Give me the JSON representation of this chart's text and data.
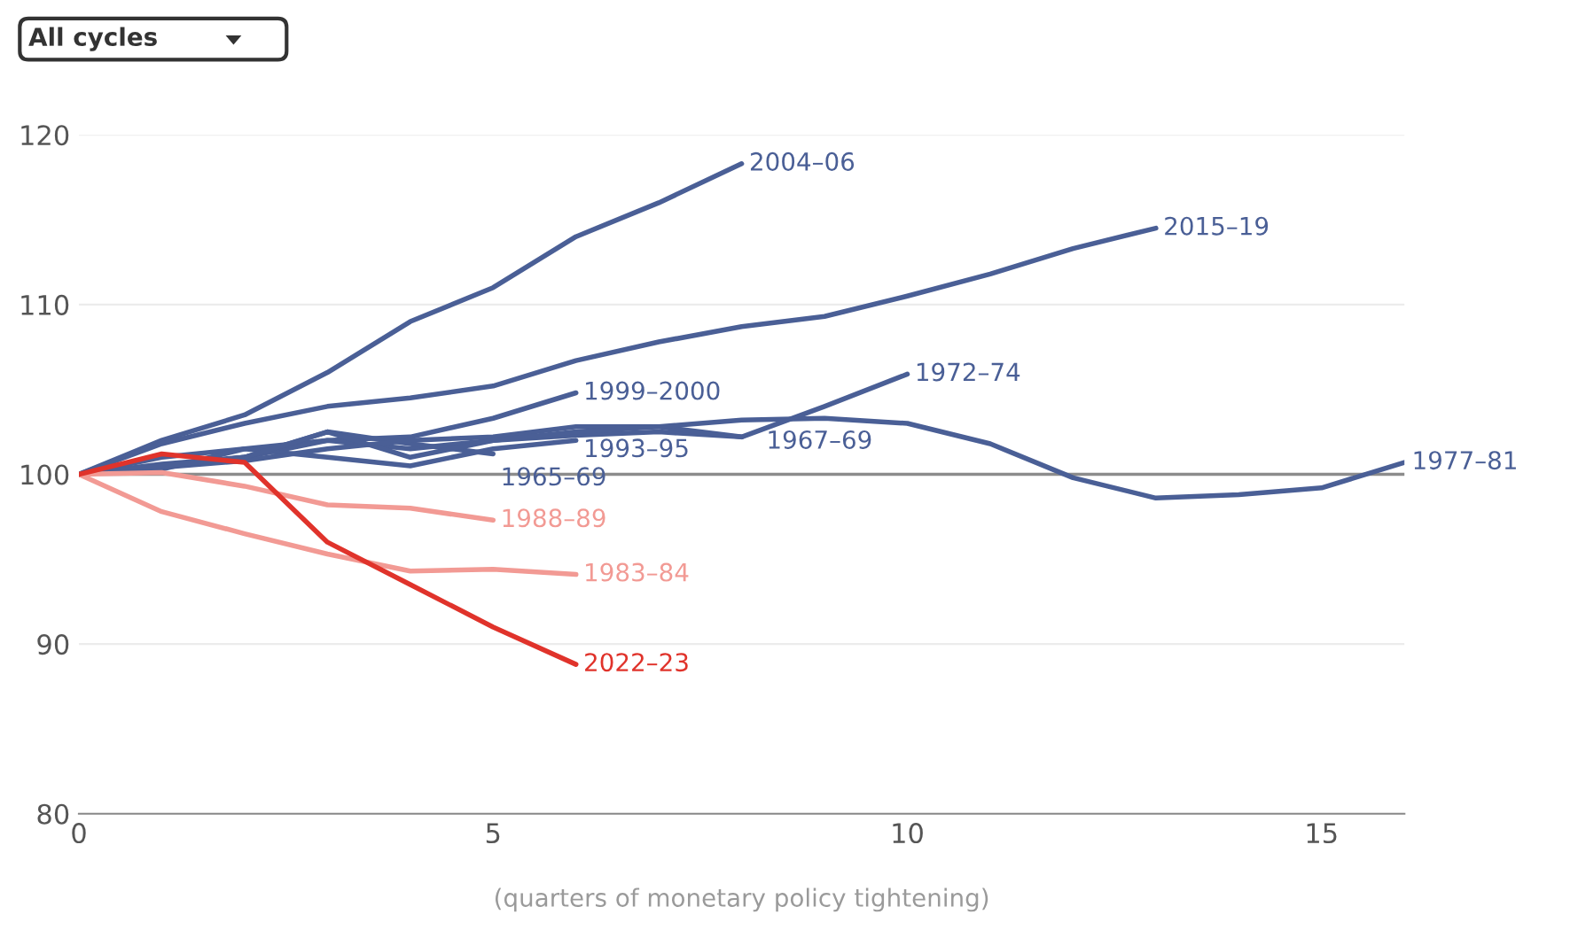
{
  "chart_data": {
    "type": "line",
    "xlabel": "(quarters of monetary policy tightening)",
    "annotations": [
      "All cycles"
    ],
    "xlim": [
      0,
      16
    ],
    "xticks": [
      0,
      5,
      10,
      15
    ],
    "ylim": [
      80,
      120
    ],
    "yticks": [
      80,
      90,
      100,
      110,
      120
    ],
    "grid": "y",
    "legend": false,
    "marker": "none",
    "line_style": "solid",
    "ref_lines": [
      {
        "axis": "y",
        "value": 100,
        "color": "#8c8c8c"
      }
    ],
    "series": [
      {
        "name": "2004–06",
        "color": "#4a5f96",
        "x": [
          0,
          1,
          2,
          3,
          4,
          5,
          6,
          7,
          8
        ],
        "values": [
          100,
          102,
          103.5,
          106,
          109,
          111,
          114,
          116,
          118.3
        ]
      },
      {
        "name": "2015–19",
        "color": "#4a5f96",
        "x": [
          0,
          1,
          2,
          3,
          4,
          5,
          6,
          7,
          8,
          9,
          10,
          11,
          12,
          13
        ],
        "values": [
          100,
          101.8,
          103,
          104,
          104.5,
          105.2,
          106.7,
          107.8,
          108.7,
          109.3,
          110.5,
          111.8,
          113.3,
          114.5
        ]
      },
      {
        "name": "1999–2000",
        "color": "#4a5f96",
        "x": [
          0,
          1,
          2,
          3,
          4,
          5,
          6
        ],
        "values": [
          100,
          101,
          101.5,
          102,
          102.2,
          103.3,
          104.8
        ]
      },
      {
        "name": "1972–74",
        "color": "#4a5f96",
        "x": [
          0,
          1,
          2,
          3,
          4,
          5,
          6,
          7,
          8,
          9,
          10
        ],
        "values": [
          100,
          100.5,
          101,
          102,
          101.5,
          102,
          102.3,
          102.5,
          102.2,
          104,
          105.9
        ]
      },
      {
        "name": "1965–69",
        "color": "#4a5f96",
        "x": [
          0,
          1,
          2,
          3,
          4,
          5
        ],
        "values": [
          100,
          100.6,
          101,
          102.5,
          101.8,
          101.2
        ]
      },
      {
        "name": "1993–95",
        "color": "#4a5f96",
        "x": [
          0,
          1,
          2,
          3,
          4,
          5,
          6
        ],
        "values": [
          100,
          100.3,
          101.5,
          101,
          100.5,
          101.5,
          102
        ]
      },
      {
        "name": "1967–69",
        "color": "#4a5f96",
        "x": [
          0,
          1,
          2,
          3,
          4,
          5,
          6,
          7,
          8
        ],
        "values": [
          100,
          100.4,
          100.8,
          101.5,
          102,
          102.2,
          102.8,
          102.8,
          102.2
        ]
      },
      {
        "name": "1977–81",
        "color": "#4a5f96",
        "x": [
          0,
          1,
          2,
          3,
          4,
          5,
          6,
          7,
          8,
          9,
          10,
          11,
          12,
          13,
          14,
          15,
          16
        ],
        "values": [
          100,
          100.5,
          101,
          102.5,
          101,
          102,
          102.5,
          102.8,
          103.2,
          103.3,
          103,
          101.8,
          99.8,
          98.6,
          98.8,
          99.2,
          100.7
        ]
      },
      {
        "name": "1988–89",
        "color": "#f29a94",
        "x": [
          0,
          1,
          2,
          3,
          4,
          5
        ],
        "values": [
          100,
          100.1,
          99.3,
          98.2,
          98,
          97.3
        ]
      },
      {
        "name": "1983–84",
        "color": "#f29a94",
        "x": [
          0,
          1,
          2,
          3,
          4,
          5,
          6
        ],
        "values": [
          100,
          97.8,
          96.5,
          95.3,
          94.3,
          94.4,
          94.1
        ]
      },
      {
        "name": "2022–23",
        "color": "#e0332b",
        "x": [
          0,
          1,
          2,
          3,
          4,
          5,
          6
        ],
        "values": [
          100,
          101.2,
          100.7,
          96,
          93.5,
          91,
          88.8
        ]
      }
    ]
  }
}
